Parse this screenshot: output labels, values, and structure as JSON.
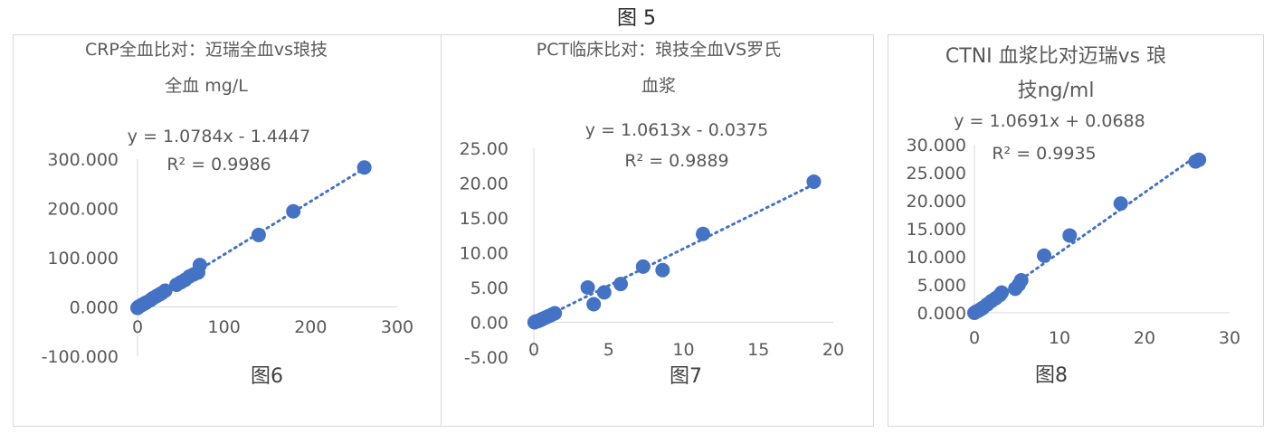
{
  "figure_title": "图 5",
  "chart_data": [
    {
      "type": "scatter",
      "title_lines": [
        "CRP全血比对：迈瑞全血vs琅技",
        "全血 mg/L"
      ],
      "equation": "y = 1.0784x - 1.4447",
      "r2": "R² = 0.9986",
      "caption": "图6",
      "xlim": [
        0,
        300
      ],
      "ylim": [
        -100,
        300
      ],
      "x_ticks": [
        "0",
        "100",
        "200",
        "300"
      ],
      "y_ticks": [
        "-100.000",
        "0.000",
        "100.000",
        "200.000",
        "300.000"
      ],
      "trendline": {
        "slope": 1.0784,
        "intercept": -1.4447
      },
      "points": [
        [
          0,
          -2
        ],
        [
          1,
          0
        ],
        [
          2,
          1
        ],
        [
          4,
          3
        ],
        [
          6,
          5
        ],
        [
          8,
          7
        ],
        [
          10,
          9
        ],
        [
          15,
          14
        ],
        [
          18,
          18
        ],
        [
          22,
          22
        ],
        [
          25,
          25
        ],
        [
          28,
          28
        ],
        [
          32,
          33
        ],
        [
          45,
          45
        ],
        [
          50,
          50
        ],
        [
          55,
          55
        ],
        [
          60,
          62
        ],
        [
          65,
          66
        ],
        [
          70,
          70
        ],
        [
          72,
          85
        ],
        [
          140,
          146
        ],
        [
          180,
          194
        ],
        [
          262,
          283
        ]
      ],
      "point_color": "#4472C4"
    },
    {
      "type": "scatter",
      "title_lines": [
        "PCT临床比对：琅技全血VS罗氏",
        "血浆"
      ],
      "equation": "y = 1.0613x - 0.0375",
      "r2": "R² = 0.9889",
      "caption": "图7",
      "xlim": [
        0,
        20
      ],
      "ylim": [
        -5,
        25
      ],
      "x_ticks": [
        "0",
        "5",
        "10",
        "15",
        "20"
      ],
      "y_ticks": [
        "-5.00",
        "0.00",
        "5.00",
        "10.00",
        "15.00",
        "20.00",
        "25.00"
      ],
      "trendline": {
        "slope": 1.0613,
        "intercept": -0.0375
      },
      "points": [
        [
          0.05,
          0.0
        ],
        [
          0.1,
          0.1
        ],
        [
          0.2,
          0.15
        ],
        [
          0.3,
          0.2
        ],
        [
          0.4,
          0.3
        ],
        [
          0.5,
          0.4
        ],
        [
          0.6,
          0.5
        ],
        [
          0.8,
          0.7
        ],
        [
          1.0,
          0.9
        ],
        [
          1.2,
          1.1
        ],
        [
          1.4,
          1.3
        ],
        [
          3.6,
          5.0
        ],
        [
          4.0,
          2.6
        ],
        [
          4.7,
          4.3
        ],
        [
          5.8,
          5.5
        ],
        [
          7.3,
          8.0
        ],
        [
          8.6,
          7.5
        ],
        [
          11.3,
          12.7
        ],
        [
          18.7,
          20.2
        ]
      ],
      "point_color": "#4472C4"
    },
    {
      "type": "scatter",
      "title_lines": [
        "CTNI 血浆比对迈瑞vs 琅",
        "技ng/ml"
      ],
      "equation": "y = 1.0691x + 0.0688",
      "r2": "R² = 0.9935",
      "caption": "图8",
      "xlim": [
        0,
        30
      ],
      "ylim": [
        0,
        30
      ],
      "x_ticks": [
        "0",
        "10",
        "20",
        "30"
      ],
      "y_ticks": [
        "0.000",
        "5.000",
        "10.000",
        "15.000",
        "20.000",
        "25.000",
        "30.000"
      ],
      "trendline": {
        "slope": 1.0691,
        "intercept": 0.0688
      },
      "points": [
        [
          0.0,
          0.0
        ],
        [
          0.2,
          0.2
        ],
        [
          0.5,
          0.4
        ],
        [
          0.8,
          0.7
        ],
        [
          1.0,
          0.9
        ],
        [
          1.5,
          1.5
        ],
        [
          2.0,
          2.1
        ],
        [
          2.5,
          2.6
        ],
        [
          3.0,
          3.2
        ],
        [
          3.2,
          3.6
        ],
        [
          4.8,
          4.3
        ],
        [
          5.2,
          5.0
        ],
        [
          5.5,
          5.8
        ],
        [
          8.2,
          10.2
        ],
        [
          11.2,
          13.8
        ],
        [
          17.2,
          19.5
        ],
        [
          26.0,
          27.0
        ],
        [
          26.4,
          27.3
        ]
      ],
      "point_color": "#4472C4"
    }
  ]
}
